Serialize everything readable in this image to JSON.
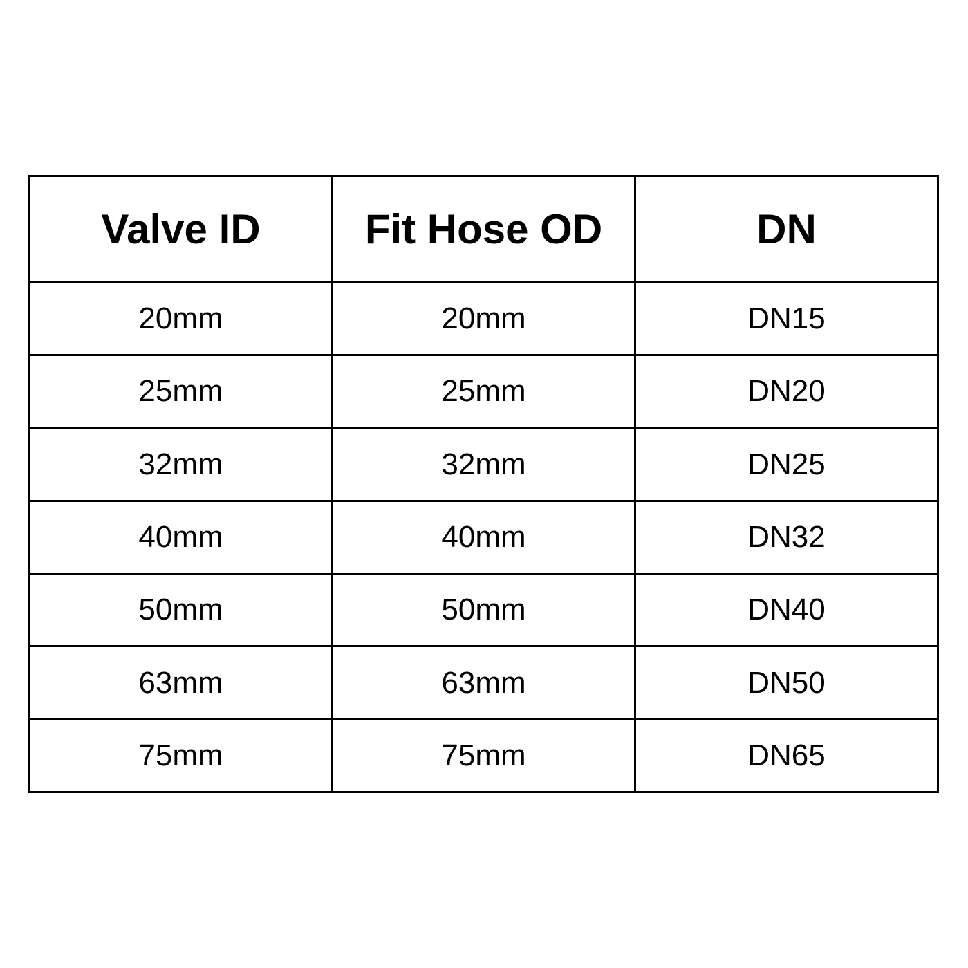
{
  "colors": {
    "background": "#ffffff",
    "border": "#000000",
    "text": "#000000"
  },
  "chart_data": {
    "type": "table",
    "title": "",
    "columns": [
      "Valve ID",
      "Fit Hose OD",
      "DN"
    ],
    "rows": [
      [
        "20mm",
        "20mm",
        "DN15"
      ],
      [
        "25mm",
        "25mm",
        "DN20"
      ],
      [
        "32mm",
        "32mm",
        "DN25"
      ],
      [
        "40mm",
        "40mm",
        "DN32"
      ],
      [
        "50mm",
        "50mm",
        "DN40"
      ],
      [
        "63mm",
        "63mm",
        "DN50"
      ],
      [
        "75mm",
        "75mm",
        "DN65"
      ]
    ]
  }
}
